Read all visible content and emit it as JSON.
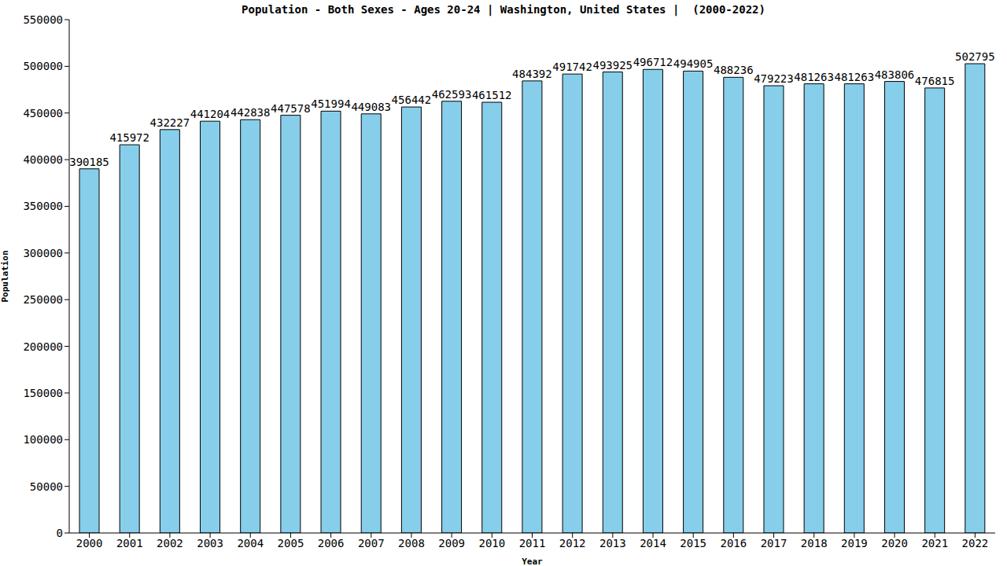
{
  "chart_data": {
    "type": "bar",
    "title": "Population - Both Sexes - Ages 20-24 | Washington, United States |  (2000-2022)",
    "x_label": "Year",
    "y_label": "Population",
    "categories": [
      "2000",
      "2001",
      "2002",
      "2003",
      "2004",
      "2005",
      "2006",
      "2007",
      "2008",
      "2009",
      "2010",
      "2011",
      "2012",
      "2013",
      "2014",
      "2015",
      "2016",
      "2017",
      "2018",
      "2019",
      "2020",
      "2021",
      "2022"
    ],
    "values": [
      390185,
      415972,
      432227,
      441204,
      442838,
      447578,
      451994,
      449083,
      456442,
      462593,
      461512,
      484392,
      491742,
      493925,
      496712,
      494905,
      488236,
      479223,
      481263,
      481263,
      483806,
      476815,
      502795
    ],
    "color": "#87ceeb",
    "ylim": [
      0,
      550000
    ],
    "yticks": [
      0,
      50000,
      100000,
      150000,
      200000,
      250000,
      300000,
      350000,
      400000,
      450000,
      500000,
      550000
    ],
    "grid": false,
    "data_labels": true
  }
}
